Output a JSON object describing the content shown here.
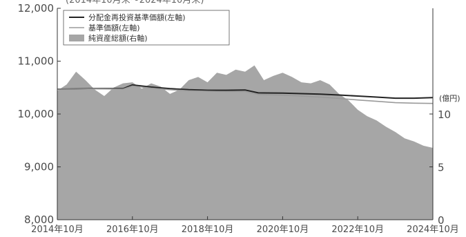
{
  "chart_data": {
    "type": "area",
    "title": "(2014年10月末～2024年10月末)",
    "left_axis": {
      "ticks": [
        "8,000",
        "9,000",
        "10,000",
        "11,000",
        "12,000"
      ],
      "ylim": [
        8000,
        12000
      ]
    },
    "right_axis": {
      "unit": "(億円)",
      "ticks": [
        "0",
        "5",
        "10"
      ],
      "ylim": [
        0,
        20
      ]
    },
    "x_ticks": [
      "2014年10月",
      "2016年10月",
      "2018年10月",
      "2020年10月",
      "2022年10月",
      "2024年10月"
    ],
    "x_range": [
      2014.75,
      2024.75
    ],
    "legend": [
      {
        "label": "分配金再投資基準価額(左軸)",
        "kind": "line",
        "color": "#222222"
      },
      {
        "label": "基準価額(左軸)",
        "kind": "line",
        "color": "#9a9a9a"
      },
      {
        "label": "純資産総額(右軸)",
        "kind": "area",
        "color": "#a6a6a6"
      }
    ],
    "series": [
      {
        "name": "分配金再投資基準価額(左軸)",
        "axis": "left",
        "x": [
          2014.75,
          2015.25,
          2015.75,
          2016.5,
          2016.75,
          2017.25,
          2017.75,
          2018.25,
          2018.75,
          2019.25,
          2019.75,
          2020.1,
          2020.75,
          2021.25,
          2021.75,
          2022.25,
          2022.75,
          2023.25,
          2023.75,
          2024.25,
          2024.75
        ],
        "values": [
          10470,
          10475,
          10480,
          10480,
          10550,
          10510,
          10480,
          10460,
          10450,
          10450,
          10455,
          10400,
          10395,
          10385,
          10375,
          10360,
          10340,
          10320,
          10300,
          10300,
          10310
        ]
      },
      {
        "name": "基準価額(左軸)",
        "axis": "left",
        "x": [
          2014.75,
          2015.25,
          2015.75,
          2016.5,
          2016.75,
          2017.25,
          2017.75,
          2018.25,
          2018.75,
          2019.25,
          2019.75,
          2020.1,
          2020.75,
          2021.25,
          2021.75,
          2022.25,
          2022.75,
          2023.25,
          2023.75,
          2024.25,
          2024.75
        ],
        "values": [
          10470,
          10470,
          10475,
          10470,
          10530,
          10490,
          10460,
          10440,
          10430,
          10425,
          10425,
          10370,
          10355,
          10340,
          10320,
          10295,
          10265,
          10240,
          10215,
          10205,
          10200
        ]
      },
      {
        "name": "純資産総額(右軸)",
        "axis": "right",
        "x": [
          2014.75,
          2015.0,
          2015.25,
          2015.5,
          2015.75,
          2016.0,
          2016.25,
          2016.5,
          2016.75,
          2017.0,
          2017.25,
          2017.5,
          2017.75,
          2018.0,
          2018.25,
          2018.5,
          2018.75,
          2019.0,
          2019.25,
          2019.5,
          2019.75,
          2020.0,
          2020.25,
          2020.5,
          2020.75,
          2021.0,
          2021.25,
          2021.5,
          2021.75,
          2022.0,
          2022.25,
          2022.5,
          2022.75,
          2023.0,
          2023.25,
          2023.5,
          2023.75,
          2024.0,
          2024.25,
          2024.5,
          2024.75
        ],
        "values": [
          12.2,
          12.8,
          14.0,
          13.2,
          12.3,
          11.7,
          12.5,
          12.9,
          13.0,
          12.4,
          12.9,
          12.6,
          11.9,
          12.3,
          13.2,
          13.5,
          13.0,
          13.9,
          13.7,
          14.2,
          14.0,
          14.6,
          13.2,
          13.6,
          13.9,
          13.5,
          13.0,
          12.9,
          13.2,
          12.8,
          11.9,
          11.3,
          10.4,
          9.8,
          9.4,
          8.8,
          8.3,
          7.7,
          7.4,
          7.0,
          6.8
        ]
      }
    ]
  }
}
